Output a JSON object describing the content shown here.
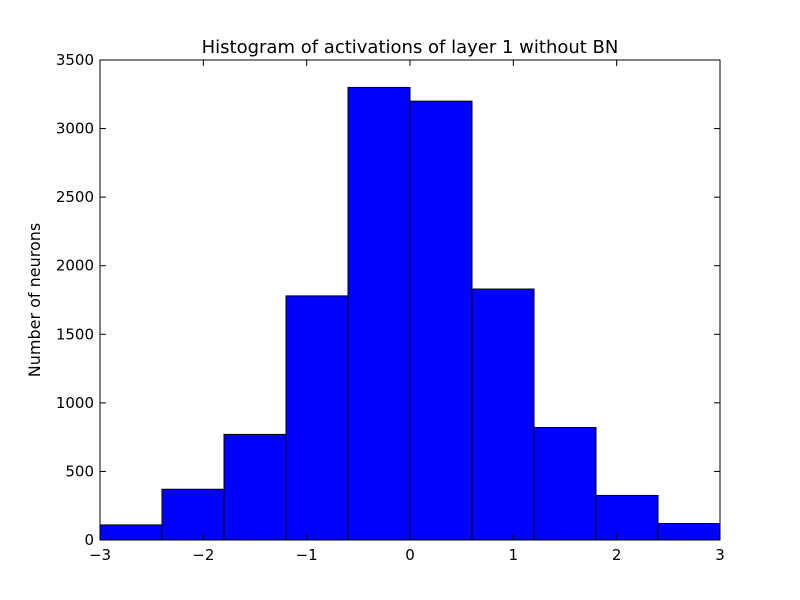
{
  "chart_data": {
    "type": "bar",
    "title": "Histogram of activations of layer 1  without BN",
    "xlabel": "",
    "ylabel": "Number of neurons",
    "xlim": [
      -3,
      3
    ],
    "ylim": [
      0,
      3500
    ],
    "bin_edges": [
      -3,
      -2.4,
      -1.8,
      -1.2,
      -0.6,
      0,
      0.6,
      1.2,
      1.8,
      2.4,
      3
    ],
    "values": [
      110,
      370,
      770,
      1780,
      3300,
      3200,
      1830,
      820,
      325,
      120
    ],
    "x_ticks": [
      -3,
      -2,
      -1,
      0,
      1,
      2,
      3
    ],
    "x_tick_labels": [
      "−3",
      "−2",
      "−1",
      "0",
      "1",
      "2",
      "3"
    ],
    "y_ticks": [
      0,
      500,
      1000,
      1500,
      2000,
      2500,
      3000,
      3500
    ],
    "y_tick_labels": [
      "0",
      "500",
      "1000",
      "1500",
      "2000",
      "2500",
      "3000",
      "3500"
    ],
    "grid": false,
    "legend": "none",
    "bar_color": "#0000ff",
    "edge_color": "#000000"
  }
}
